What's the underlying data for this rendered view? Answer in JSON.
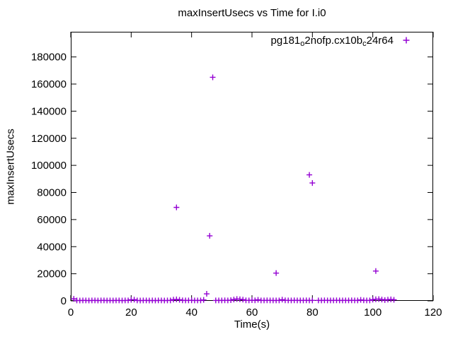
{
  "colors": {
    "marker": "#9400D3",
    "text": "#000000",
    "border": "#000000",
    "background": "#ffffff"
  },
  "legend": {
    "full_label": "pg181_o2nofp.cx10b_c24r64",
    "parts": [
      {
        "text": "pg181",
        "sub": false
      },
      {
        "text": "o",
        "sub": true
      },
      {
        "text": "2nofp.cx10b",
        "sub": false
      },
      {
        "text": "c",
        "sub": true
      },
      {
        "text": "24r64",
        "sub": false
      }
    ]
  },
  "chart_data": {
    "type": "scatter",
    "title": "maxInsertUsecs vs Time for I.i0",
    "xlabel": "Time(s)",
    "ylabel": "maxInsertUsecs",
    "xlim": [
      0,
      120
    ],
    "ylim": [
      0,
      198600
    ],
    "x_ticks": [
      0,
      20,
      40,
      60,
      80,
      100,
      120
    ],
    "y_ticks": [
      0,
      20000,
      40000,
      60000,
      80000,
      100000,
      120000,
      140000,
      160000,
      180000
    ],
    "grid": false,
    "legend_position": "top-right-inside",
    "marker_style": "plus",
    "series": [
      {
        "name": "pg181_o2nofp.cx10b_c24r64",
        "color": "#9400D3",
        "outliers": [
          [
            35,
            69000
          ],
          [
            45,
            5200
          ],
          [
            46,
            48000
          ],
          [
            47,
            165000
          ],
          [
            68,
            20500
          ],
          [
            79,
            93000
          ],
          [
            80,
            87000
          ],
          [
            101,
            22000
          ]
        ],
        "baseline": [
          [
            1,
            1500
          ],
          [
            2,
            300
          ],
          [
            3,
            250
          ],
          [
            4,
            350
          ],
          [
            5,
            300
          ],
          [
            6,
            250
          ],
          [
            7,
            300
          ],
          [
            8,
            350
          ],
          [
            9,
            250
          ],
          [
            10,
            300
          ],
          [
            11,
            350
          ],
          [
            12,
            250
          ],
          [
            13,
            300
          ],
          [
            14,
            250
          ],
          [
            15,
            350
          ],
          [
            16,
            300
          ],
          [
            17,
            250
          ],
          [
            18,
            300
          ],
          [
            19,
            350
          ],
          [
            20,
            800
          ],
          [
            21,
            900
          ],
          [
            22,
            300
          ],
          [
            23,
            250
          ],
          [
            24,
            300
          ],
          [
            25,
            350
          ],
          [
            26,
            250
          ],
          [
            27,
            300
          ],
          [
            28,
            250
          ],
          [
            29,
            300
          ],
          [
            30,
            350
          ],
          [
            31,
            250
          ],
          [
            32,
            300
          ],
          [
            33,
            350
          ],
          [
            34,
            900
          ],
          [
            35,
            1100
          ],
          [
            36,
            800
          ],
          [
            37,
            400
          ],
          [
            38,
            300
          ],
          [
            39,
            350
          ],
          [
            40,
            400
          ],
          [
            41,
            300
          ],
          [
            42,
            350
          ],
          [
            43,
            300
          ],
          [
            44,
            700
          ],
          [
            48,
            300
          ],
          [
            49,
            350
          ],
          [
            50,
            300
          ],
          [
            51,
            400
          ],
          [
            52,
            350
          ],
          [
            53,
            500
          ],
          [
            54,
            1000
          ],
          [
            55,
            1400
          ],
          [
            56,
            1200
          ],
          [
            57,
            900
          ],
          [
            58,
            400
          ],
          [
            59,
            350
          ],
          [
            60,
            500
          ],
          [
            61,
            400
          ],
          [
            62,
            800
          ],
          [
            63,
            350
          ],
          [
            64,
            300
          ],
          [
            65,
            400
          ],
          [
            66,
            350
          ],
          [
            67,
            300
          ],
          [
            68,
            300
          ],
          [
            69,
            350
          ],
          [
            70,
            900
          ],
          [
            71,
            400
          ],
          [
            72,
            350
          ],
          [
            73,
            300
          ],
          [
            74,
            400
          ],
          [
            75,
            350
          ],
          [
            76,
            300
          ],
          [
            77,
            350
          ],
          [
            78,
            400
          ],
          [
            79,
            300
          ],
          [
            80,
            350
          ],
          [
            82,
            350
          ],
          [
            83,
            300
          ],
          [
            84,
            400
          ],
          [
            85,
            350
          ],
          [
            86,
            300
          ],
          [
            87,
            350
          ],
          [
            88,
            400
          ],
          [
            89,
            300
          ],
          [
            90,
            350
          ],
          [
            91,
            350
          ],
          [
            92,
            300
          ],
          [
            93,
            400
          ],
          [
            94,
            350
          ],
          [
            95,
            300
          ],
          [
            96,
            700
          ],
          [
            97,
            400
          ],
          [
            98,
            300
          ],
          [
            99,
            350
          ],
          [
            100,
            900
          ],
          [
            101,
            1200
          ],
          [
            102,
            1300
          ],
          [
            103,
            1000
          ],
          [
            104,
            600
          ],
          [
            105,
            900
          ],
          [
            106,
            1100
          ],
          [
            107,
            800
          ]
        ]
      }
    ]
  }
}
